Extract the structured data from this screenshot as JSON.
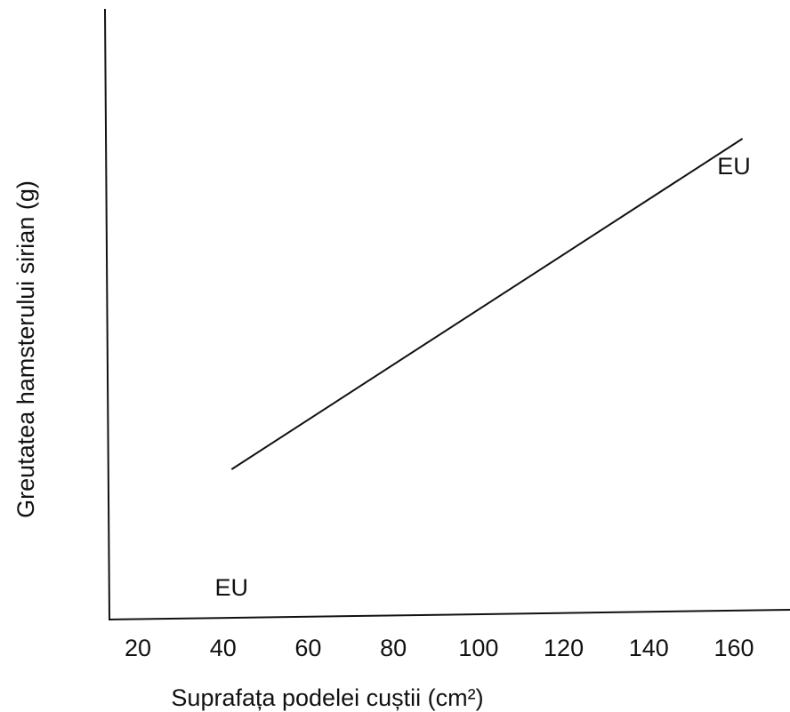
{
  "chart_data": {
    "type": "line",
    "title": "",
    "xlabel": "Suprafața podelei cuștii (cm²)",
    "ylabel": "Greutatea hamsterului sirian (g)",
    "x_ticks": [
      "20",
      "40",
      "60",
      "80",
      "100",
      "120",
      "140",
      "160"
    ],
    "x_tick_values": [
      20,
      40,
      60,
      80,
      100,
      120,
      140,
      160
    ],
    "xlim": [
      15,
      175
    ],
    "y_ticks": [],
    "grid": false,
    "legend": "none",
    "series": [
      {
        "x": [
          42,
          162
        ],
        "y": [
          0.27,
          0.89
        ],
        "color": "#111111"
      }
    ],
    "annotations": [
      {
        "text": "EU",
        "x": 42,
        "y": 0.05
      },
      {
        "text": "EU",
        "x": 160,
        "y": 0.84
      }
    ]
  }
}
